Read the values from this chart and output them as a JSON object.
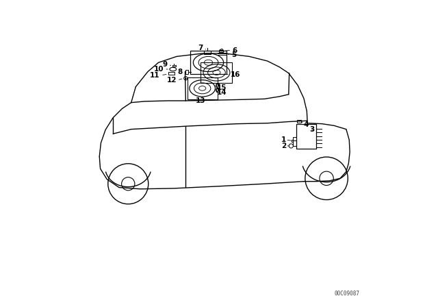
{
  "background_color": "#ffffff",
  "line_color": "#000000",
  "label_color": "#000000",
  "diagram_id": "00C09087",
  "figure_width": 6.4,
  "figure_height": 4.48,
  "dpi": 100
}
